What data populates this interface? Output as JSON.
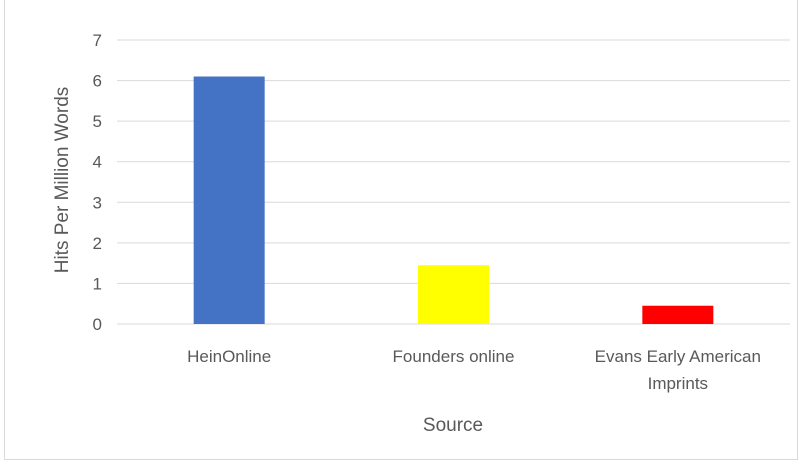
{
  "chart_data": {
    "type": "bar",
    "title": "",
    "xlabel": "Source",
    "ylabel": "Hits Per Million Words",
    "categories": [
      "HeinOnline",
      "Founders online",
      "Evans Early American Imprints"
    ],
    "category_lines": [
      [
        "HeinOnline"
      ],
      [
        "Founders online"
      ],
      [
        "Evans Early American",
        "Imprints"
      ]
    ],
    "values": [
      6.1,
      1.45,
      0.45
    ],
    "bar_colors": [
      "#4472c4",
      "#ffff00",
      "#ff0000"
    ],
    "ylim": [
      0,
      7
    ],
    "yticks": [
      0,
      1,
      2,
      3,
      4,
      5,
      6,
      7
    ],
    "grid": true,
    "legend": "none"
  }
}
